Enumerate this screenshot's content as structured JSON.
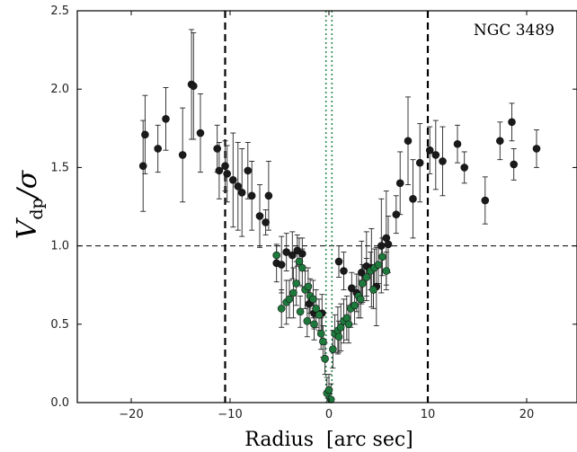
{
  "chart_data": {
    "type": "scatter",
    "title": "",
    "annotation": "NGC 3489",
    "xlabel": "Radius  [arc sec]",
    "ylabel": "V",
    "ylabel_sub": "dp",
    "ylabel_rest": "/σ",
    "xlim": [
      -25,
      25
    ],
    "ylim": [
      0.0,
      2.5
    ],
    "xticks": [
      -20,
      -10,
      0,
      10,
      20
    ],
    "xtick_labels": [
      "−20",
      "−10",
      "0",
      "10",
      "20"
    ],
    "yticks": [
      0.0,
      0.5,
      1.0,
      1.5,
      2.0,
      2.5
    ],
    "ytick_labels": [
      "0.0",
      "0.5",
      "1.0",
      "1.5",
      "2.0",
      "2.5"
    ],
    "grid": false,
    "reference_lines": {
      "horizontal_dashed": 1.0,
      "vertical_dashed": [
        -10.5,
        10.0
      ],
      "vertical_dotted": [
        -0.3,
        0.3
      ]
    },
    "colors": {
      "black_series": "#1a1a1a",
      "green_series": "#1e7a3c",
      "dotted_lines": "#2e8b57"
    },
    "series": [
      {
        "marker": "black",
        "x": [
          -18.8,
          -18.6,
          -17.3,
          -16.5,
          -14.8,
          -13.9,
          -13.7,
          -13.0,
          -11.3,
          -11.1,
          -10.5,
          -10.3,
          -9.7,
          -9.2,
          -8.8,
          -8.2,
          -7.8,
          -7.0,
          -6.4,
          -6.1,
          -5.3,
          -4.8,
          -4.3,
          -3.7,
          -3.2,
          -2.7,
          -2.0,
          -1.5,
          -0.7,
          1.0,
          1.5,
          2.3,
          2.8,
          3.3,
          3.8,
          4.3,
          4.8,
          5.3,
          5.8,
          6.0,
          6.8,
          7.2,
          8.0,
          8.5,
          9.2,
          10.2,
          10.8,
          11.5,
          13.0,
          13.7,
          15.8,
          17.3,
          18.5,
          18.7,
          21.0
        ],
        "y": [
          1.51,
          1.71,
          1.62,
          1.81,
          1.58,
          2.03,
          2.02,
          1.72,
          1.62,
          1.48,
          1.51,
          1.46,
          1.42,
          1.38,
          1.34,
          1.48,
          1.32,
          1.19,
          1.15,
          1.32,
          0.89,
          0.88,
          0.96,
          0.94,
          0.97,
          0.95,
          0.63,
          0.57,
          0.57,
          0.9,
          0.84,
          0.73,
          0.7,
          0.83,
          0.87,
          0.86,
          0.74,
          1.0,
          1.05,
          1.01,
          1.2,
          1.4,
          1.67,
          1.3,
          1.53,
          1.61,
          1.58,
          1.54,
          1.65,
          1.5,
          1.29,
          1.67,
          1.79,
          1.52,
          1.62
        ],
        "yerr": [
          0.29,
          0.25,
          0.15,
          0.2,
          0.3,
          0.35,
          0.34,
          0.25,
          0.15,
          0.18,
          0.16,
          0.18,
          0.3,
          0.28,
          0.28,
          0.18,
          0.22,
          0.2,
          0.08,
          0.22,
          0.12,
          0.18,
          0.12,
          0.15,
          0.1,
          0.1,
          0.12,
          0.1,
          0.12,
          0.1,
          0.12,
          0.1,
          0.12,
          0.2,
          0.22,
          0.25,
          0.25,
          0.3,
          0.3,
          0.18,
          0.12,
          0.2,
          0.28,
          0.25,
          0.25,
          0.15,
          0.22,
          0.22,
          0.12,
          0.1,
          0.15,
          0.12,
          0.12,
          0.1,
          0.12
        ]
      },
      {
        "marker": "green",
        "x": [
          -5.3,
          -4.8,
          -4.3,
          -4.0,
          -3.6,
          -3.3,
          -3.0,
          -2.7,
          -2.4,
          -2.1,
          -1.9,
          -1.6,
          -1.3,
          -1.0,
          -0.8,
          -0.6,
          -0.4,
          -0.2,
          0.0,
          0.2,
          0.4,
          0.6,
          0.9,
          1.2,
          1.5,
          1.8,
          2.2,
          2.6,
          3.0,
          3.4,
          3.8,
          4.2,
          4.6,
          5.0,
          5.4,
          5.8,
          -2.9,
          -2.2,
          -1.5,
          1.0,
          2.0,
          3.2,
          4.5
        ],
        "y": [
          0.94,
          0.6,
          0.64,
          0.66,
          0.7,
          0.76,
          0.9,
          0.86,
          0.72,
          0.74,
          0.68,
          0.66,
          0.6,
          0.56,
          0.44,
          0.39,
          0.28,
          0.06,
          0.08,
          0.02,
          0.34,
          0.44,
          0.46,
          0.48,
          0.52,
          0.54,
          0.6,
          0.62,
          0.68,
          0.76,
          0.8,
          0.84,
          0.86,
          0.88,
          0.93,
          0.84,
          0.58,
          0.52,
          0.5,
          0.42,
          0.5,
          0.66,
          0.72
        ],
        "yerr": [
          0.06,
          0.12,
          0.14,
          0.12,
          0.16,
          0.14,
          0.15,
          0.12,
          0.12,
          0.12,
          0.11,
          0.12,
          0.12,
          0.1,
          0.1,
          0.1,
          0.1,
          0.1,
          0.1,
          0.1,
          0.12,
          0.12,
          0.15,
          0.15,
          0.14,
          0.14,
          0.12,
          0.12,
          0.14,
          0.12,
          0.12,
          0.12,
          0.12,
          0.12,
          0.12,
          0.12,
          0.1,
          0.1,
          0.1,
          0.1,
          0.12,
          0.12,
          0.12
        ]
      }
    ]
  }
}
